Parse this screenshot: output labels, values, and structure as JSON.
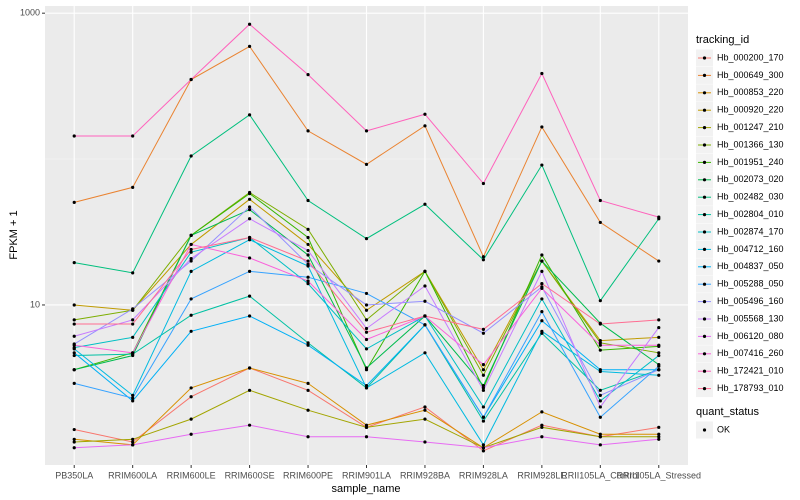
{
  "chart_data": {
    "type": "line",
    "x_label": "sample_name",
    "y_label": "FPKM + 1",
    "legend_title": "tracking_id",
    "shape_legend_title": "quant_status",
    "shape_legend_items": [
      "OK"
    ],
    "log_y": true,
    "grid": true,
    "legend_position": "right",
    "categories": [
      "PB350LA",
      "RRIM600LA",
      "RRIM600LE",
      "RRIM600SE",
      "RRIM600PE",
      "RRIM901LA",
      "RRIM928BA",
      "RRIM928LA",
      "RRIM928LE",
      "RRII105LA_Control",
      "RRII105LA_Stressed"
    ],
    "ylim": [
      0.8,
      1120
    ],
    "yticks": [
      10,
      1000
    ],
    "series": [
      {
        "name": "Hb_000200_170",
        "color": "#F8766D",
        "values": [
          1.4,
          1.15,
          2.35,
          3.7,
          2.6,
          1.45,
          2,
          1.0,
          1.5,
          1.25,
          1.45
        ]
      },
      {
        "name": "Hb_000649_300",
        "color": "#EA8331",
        "values": [
          50.5,
          64,
          351,
          592,
          156,
          92,
          169,
          21.4,
          166,
          36.8,
          20
        ]
      },
      {
        "name": "Hb_000853_220",
        "color": "#D89000",
        "values": [
          1.2,
          1.1,
          2.7,
          3.7,
          2.9,
          1.5,
          1.9,
          1.05,
          1.85,
          1.3,
          1.3
        ]
      },
      {
        "name": "Hb_000920_220",
        "color": "#C09B00",
        "values": [
          10,
          9.2,
          26,
          53,
          26,
          9.2,
          17,
          3.6,
          20,
          5.7,
          6
        ]
      },
      {
        "name": "Hb_001247_210",
        "color": "#A3A500",
        "values": [
          1.15,
          1.2,
          1.65,
          2.6,
          1.9,
          1.45,
          1.65,
          1.05,
          1.45,
          1.25,
          1.25
        ]
      },
      {
        "name": "Hb_001366_130",
        "color": "#7CAE00",
        "values": [
          7.9,
          9.2,
          30,
          59,
          33,
          7.9,
          17,
          3.3,
          20,
          5.5,
          4.7
        ]
      },
      {
        "name": "Hb_001951_240",
        "color": "#39B600",
        "values": [
          3.6,
          4.7,
          30,
          58,
          29,
          3.6,
          17,
          2.7,
          22,
          4.9,
          5.2
        ]
      },
      {
        "name": "Hb_002073_020",
        "color": "#00BB4E",
        "values": [
          3.6,
          4.5,
          30,
          45,
          22,
          3.7,
          8.4,
          2.8,
          20,
          7.5,
          3.9
        ]
      },
      {
        "name": "Hb_002482_030",
        "color": "#00BF7D",
        "values": [
          19.5,
          16.6,
          105,
          201,
          52,
          28.5,
          49,
          20.4,
          91,
          10.7,
          39
        ]
      },
      {
        "name": "Hb_002804_010",
        "color": "#00C1A3",
        "values": [
          4.5,
          4.6,
          8.5,
          11.5,
          5.5,
          2.7,
          7.3,
          1.6,
          6.4,
          2.6,
          3.6
        ]
      },
      {
        "name": "Hb_002874_170",
        "color": "#00BFC4",
        "values": [
          5.1,
          6,
          23,
          29,
          14,
          5,
          8.4,
          2,
          11,
          2.2,
          4.5
        ]
      },
      {
        "name": "Hb_004712_160",
        "color": "#00BAE0",
        "values": [
          5,
          2.4,
          17,
          28,
          18.5,
          2.7,
          4.7,
          1.1,
          6.6,
          3.5,
          3.3
        ]
      },
      {
        "name": "Hb_004837_050",
        "color": "#00B0F6",
        "values": [
          4.7,
          2.2,
          6.6,
          8.4,
          5.3,
          2.8,
          7.3,
          1.7,
          7.8,
          3.6,
          3.6
        ]
      },
      {
        "name": "Hb_005288_050",
        "color": "#35A2FF",
        "values": [
          2.9,
          2.3,
          11,
          17,
          15.5,
          12,
          7.3,
          1.7,
          9,
          1.7,
          3.8
        ]
      },
      {
        "name": "Hb_005496_160",
        "color": "#9590FF",
        "values": [
          5.4,
          9.4,
          20,
          47,
          19,
          10,
          10.6,
          6.4,
          13.3,
          2.4,
          3.6
        ]
      },
      {
        "name": "Hb_005568_130",
        "color": "#C77CFF",
        "values": [
          6.1,
          7.9,
          20.8,
          39,
          23.6,
          6.9,
          13.5,
          2.6,
          17,
          2,
          7
        ]
      },
      {
        "name": "Hb_006120_080",
        "color": "#E76BF3",
        "values": [
          1.05,
          1.1,
          1.3,
          1.5,
          1.25,
          1.25,
          1.15,
          1.05,
          1.25,
          1.1,
          1.2
        ]
      },
      {
        "name": "Hb_007416_260",
        "color": "#FA62DB",
        "values": [
          5.3,
          4.7,
          26,
          21,
          14.6,
          5.8,
          8.4,
          3.9,
          13,
          5.3,
          5.3
        ]
      },
      {
        "name": "Hb_172421_010",
        "color": "#FF62BC",
        "values": [
          144,
          144,
          351,
          840,
          379,
          156,
          203,
          68,
          386,
          52,
          40
        ]
      },
      {
        "name": "Hb_178793_010",
        "color": "#FF6C91",
        "values": [
          7.4,
          7.4,
          24,
          29,
          20,
          6.5,
          8.4,
          6.8,
          14,
          7.4,
          7.9
        ]
      }
    ]
  }
}
